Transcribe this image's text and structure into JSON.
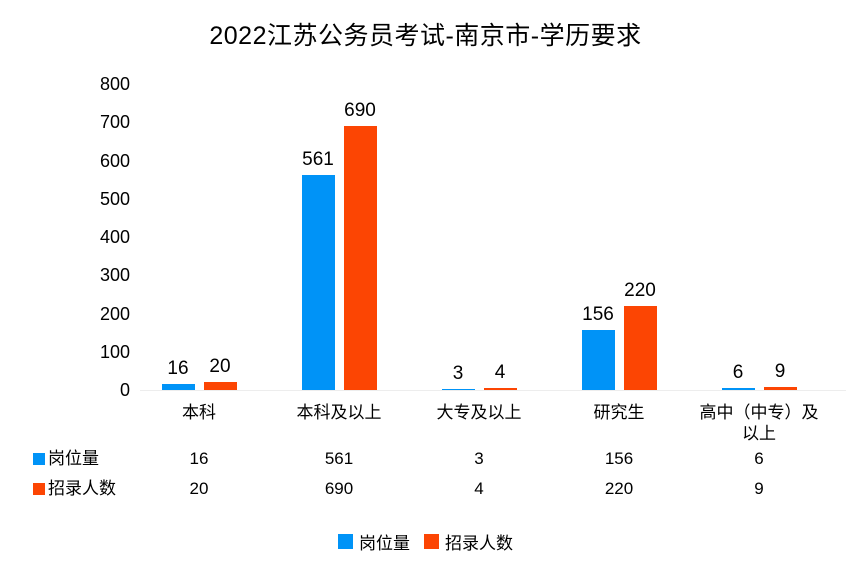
{
  "chart_data": {
    "type": "bar",
    "title": "2022江苏公务员考试-南京市-学历要求",
    "categories": [
      "本科",
      "本科及以上",
      "大专及以上",
      "研究生",
      "高中（中专）及以上"
    ],
    "series": [
      {
        "name": "岗位量",
        "color": "#0093F7",
        "values": [
          16,
          561,
          3,
          156,
          6
        ]
      },
      {
        "name": "招录人数",
        "color": "#FC4503",
        "values": [
          20,
          690,
          4,
          220,
          9
        ]
      }
    ],
    "xlabel": "",
    "ylabel": "",
    "ylim": [
      0,
      800
    ],
    "yticks": [
      0,
      100,
      200,
      300,
      400,
      500,
      600,
      700,
      800
    ],
    "grid": false,
    "legend_position": "bottom",
    "data_table_shown": true,
    "background_color": "#ffffff",
    "text_color": "#000000"
  }
}
